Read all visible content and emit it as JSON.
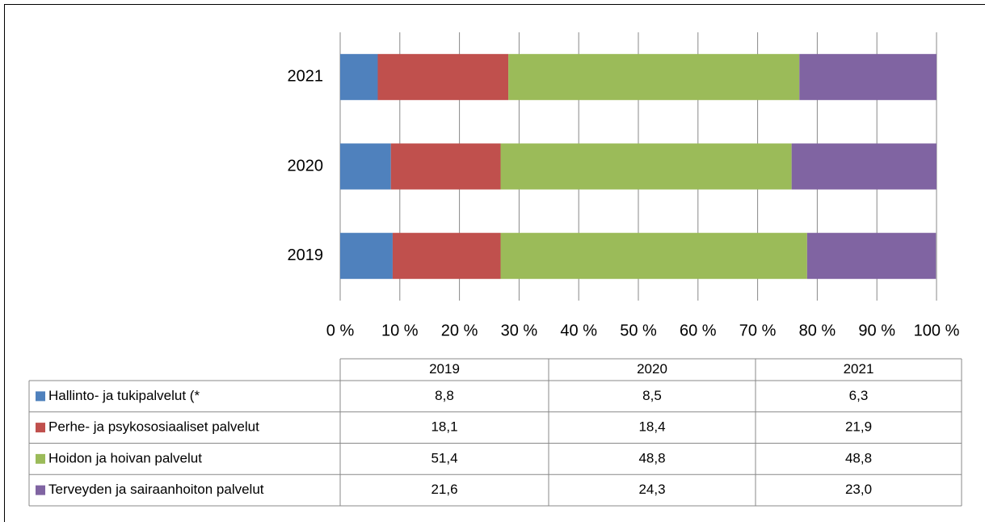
{
  "chart_data": {
    "type": "stacked-bar-horizontal",
    "categories": [
      "2019",
      "2020",
      "2021"
    ],
    "series": [
      {
        "name": "Hallinto- ja tukipalvelut (*",
        "color": "#4f81bd",
        "values": [
          8.8,
          8.5,
          6.3
        ],
        "value_labels": [
          "8,8",
          "8,5",
          "6,3"
        ]
      },
      {
        "name": "Perhe- ja psykososiaaliset palvelut",
        "color": "#c0504d",
        "values": [
          18.1,
          18.4,
          21.9
        ],
        "value_labels": [
          "18,1",
          "18,4",
          "21,9"
        ]
      },
      {
        "name": "Hoidon ja hoivan palvelut",
        "color": "#9bbb59",
        "values": [
          51.4,
          48.8,
          48.8
        ],
        "value_labels": [
          "51,4",
          "48,8",
          "48,8"
        ]
      },
      {
        "name": "Terveyden ja sairaanhoiton palvelut",
        "color": "#8064a2",
        "values": [
          21.6,
          24.3,
          23.0
        ],
        "value_labels": [
          "21,6",
          "24,3",
          "23,0"
        ]
      }
    ],
    "xlim": [
      0,
      100
    ],
    "xticks": [
      {
        "value": 0,
        "label": "0 %"
      },
      {
        "value": 10,
        "label": "10 %"
      },
      {
        "value": 20,
        "label": "20 %"
      },
      {
        "value": 30,
        "label": "30 %"
      },
      {
        "value": 40,
        "label": "40 %"
      },
      {
        "value": 50,
        "label": "50 %"
      },
      {
        "value": 60,
        "label": "60 %"
      },
      {
        "value": 70,
        "label": "70 %"
      },
      {
        "value": 80,
        "label": "80 %"
      },
      {
        "value": 90,
        "label": "90 %"
      },
      {
        "value": 100,
        "label": "100 %"
      }
    ],
    "grid": true
  }
}
